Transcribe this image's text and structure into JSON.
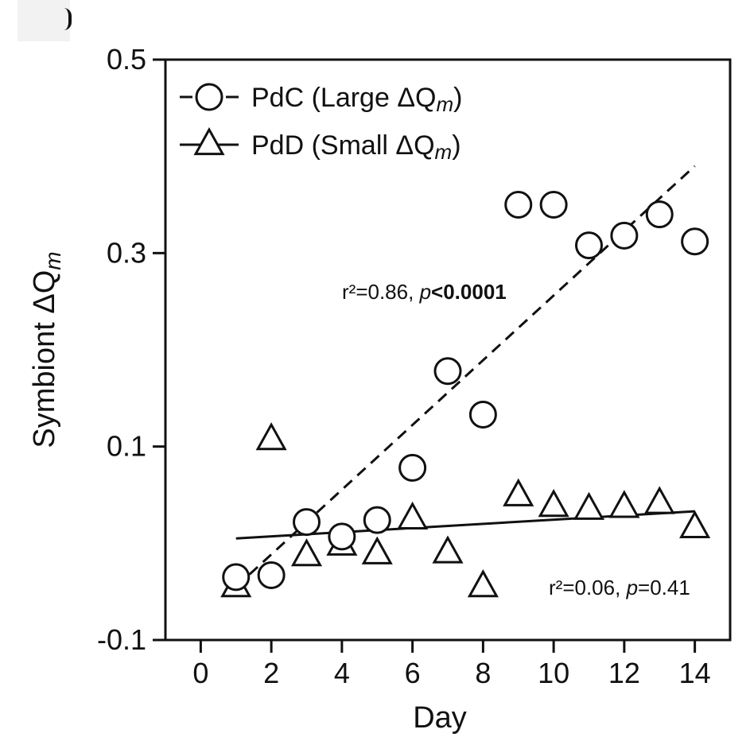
{
  "chart_data": {
    "type": "scatter",
    "title": "",
    "xlabel": "Day",
    "ylabel": "Symbiont ΔQ",
    "ylabel_sub": "m",
    "xlim": [
      -1,
      15
    ],
    "ylim": [
      -0.1,
      0.5
    ],
    "xticks": [
      0,
      2,
      4,
      6,
      8,
      10,
      12,
      14
    ],
    "yticks": [
      0.5,
      0.3,
      0.1,
      -0.1
    ],
    "ytick_labels": [
      "0.5",
      "0.3",
      "0.1",
      "-0.1"
    ],
    "legend_position": "top-left",
    "series": [
      {
        "name": "PdC (Large ΔQm)",
        "legend_main": "PdC (Large ΔQ",
        "legend_sub": "m",
        "legend_close": ")",
        "marker": "circle",
        "line_style": "dashed",
        "x": [
          1,
          2,
          3,
          4,
          5,
          6,
          7,
          8,
          9,
          10,
          11,
          12,
          13,
          14
        ],
        "y": [
          -0.035,
          -0.033,
          0.022,
          0.007,
          0.024,
          0.078,
          0.178,
          0.133,
          0.35,
          0.35,
          0.308,
          0.318,
          0.34,
          0.312
        ],
        "fit": {
          "x": [
            1,
            14
          ],
          "y": [
            -0.045,
            0.39
          ]
        },
        "stat_r2": "r²=0.86, ",
        "stat_p_label": "p",
        "stat_p_rel": "<",
        "stat_p_value": "0.0001"
      },
      {
        "name": "PdD (Small ΔQm)",
        "legend_main": "PdD (Small ΔQ",
        "legend_sub": "m",
        "legend_close": ")",
        "marker": "triangle",
        "line_style": "solid",
        "x": [
          1,
          2,
          3,
          4,
          5,
          6,
          7,
          8,
          9,
          10,
          11,
          12,
          13,
          14
        ],
        "y": [
          -0.045,
          0.107,
          -0.013,
          -0.002,
          -0.011,
          0.025,
          -0.01,
          -0.045,
          0.049,
          0.038,
          0.035,
          0.037,
          0.041,
          0.016
        ],
        "fit": {
          "x": [
            1,
            14
          ],
          "y": [
            0.005,
            0.033
          ]
        },
        "stat_r2": "r²=0.06, ",
        "stat_p_label": "p",
        "stat_p_rel": "=",
        "stat_p_value": "0.41"
      }
    ]
  }
}
